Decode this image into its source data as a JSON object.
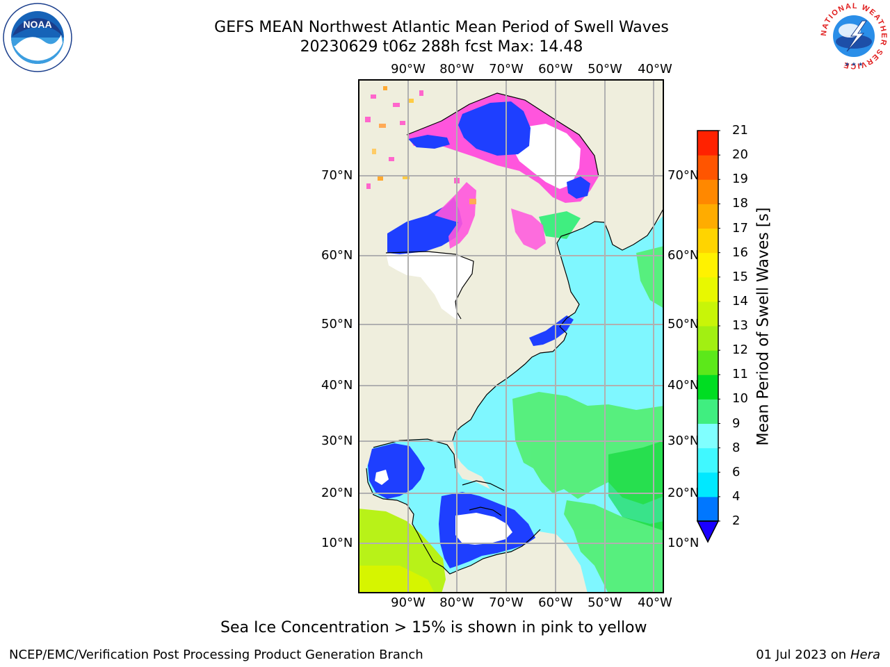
{
  "header": {
    "title_line1": "GEFS MEAN Northwest Atlantic Mean Period of Swell Waves",
    "title_line2": "20230629 t06z 288h fcst   Max: 14.48"
  },
  "logos": {
    "noaa_text": "NOAA",
    "nws_ring_text": "NATIONAL WEATHER SERVICE"
  },
  "map": {
    "lon_labels": [
      "90°W",
      "80°W",
      "70°W",
      "60°W",
      "50°W",
      "40°W"
    ],
    "lat_labels": [
      "70°N",
      "60°N",
      "50°N",
      "40°N",
      "30°N",
      "20°N",
      "10°N"
    ],
    "colors": {
      "land": "#efeedd",
      "ocean_light": "#7ff7ff",
      "ocean_green": "#55ee77",
      "ocean_blue": "#1e3fff",
      "ice_white": "#ffffff",
      "ice_pink": "#ff55dd"
    }
  },
  "colorbar": {
    "title": "Mean Period of Swell Waves [s]",
    "ticks": [
      "2",
      "4",
      "6",
      "8",
      "9",
      "10",
      "11",
      "12",
      "13",
      "14",
      "15",
      "16",
      "17",
      "18",
      "19",
      "20",
      "21"
    ],
    "colors": [
      "#0077ff",
      "#00e8ff",
      "#40f8ff",
      "#80ffff",
      "#40ee80",
      "#00dd22",
      "#5ce81a",
      "#a2ef12",
      "#c8f508",
      "#e8f800",
      "#fff200",
      "#ffd400",
      "#ffac00",
      "#ff8800",
      "#ff5500",
      "#ff2200"
    ],
    "under_color": "#1a00ff"
  },
  "notes": {
    "ice_note": "Sea Ice Concentration > 15% is shown in pink to yellow"
  },
  "footer": {
    "left": "NCEP/EMC/Verification Post Processing Product Generation Branch",
    "date": "01 Jul 2023 on ",
    "machine": "Hera"
  }
}
